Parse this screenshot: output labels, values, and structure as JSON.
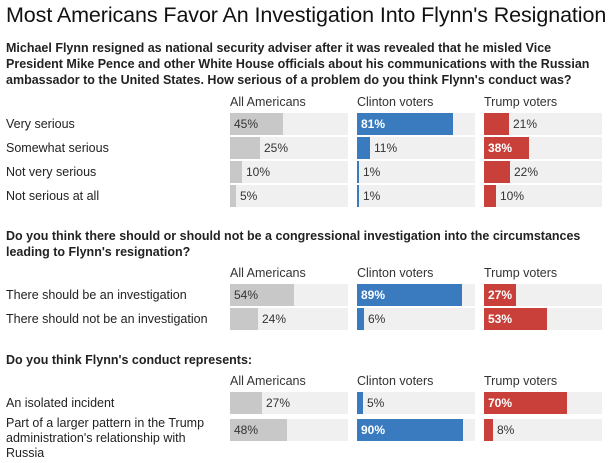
{
  "title": "Most Americans Favor An Investigation Into Flynn's Resignation",
  "colors": {
    "all": "#c8c8c8",
    "clinton": "#3a7bbf",
    "trump": "#c9403a",
    "track": "#f0f0f0"
  },
  "chart_data": {
    "type": "bar",
    "title": "Most Americans Favor An Investigation Into Flynn's Resignation",
    "columns": [
      "All Americans",
      "Clinton voters",
      "Trump voters"
    ],
    "questions": [
      {
        "question": "Michael Flynn resigned as national security adviser after it was revealed that he misled Vice President Mike Pence and other White House officials about his communications with the Russian ambassador to the United States. How serious of a problem do you think Flynn's conduct was?",
        "categories": [
          "Very serious",
          "Somewhat serious",
          "Not very serious",
          "Not serious at all"
        ],
        "series": [
          {
            "name": "All Americans",
            "values": [
              45,
              25,
              10,
              5
            ]
          },
          {
            "name": "Clinton voters",
            "values": [
              81,
              11,
              1,
              1
            ]
          },
          {
            "name": "Trump voters",
            "values": [
              21,
              38,
              22,
              10
            ]
          }
        ]
      },
      {
        "question": "Do you think there should or should not be a congressional investigation into the circumstances leading to Flynn's resignation?",
        "categories": [
          "There should be an investigation",
          "There should not be an investigation"
        ],
        "series": [
          {
            "name": "All Americans",
            "values": [
              54,
              24
            ]
          },
          {
            "name": "Clinton voters",
            "values": [
              89,
              6
            ]
          },
          {
            "name": "Trump voters",
            "values": [
              27,
              53
            ]
          }
        ]
      },
      {
        "question": "Do you think Flynn's conduct represents:",
        "categories": [
          "An isolated incident",
          "Part of a larger pattern in the Trump administration's relationship with Russia"
        ],
        "series": [
          {
            "name": "All Americans",
            "values": [
              27,
              48
            ]
          },
          {
            "name": "Clinton voters",
            "values": [
              5,
              90
            ]
          },
          {
            "name": "Trump voters",
            "values": [
              70,
              8
            ]
          }
        ]
      }
    ]
  }
}
